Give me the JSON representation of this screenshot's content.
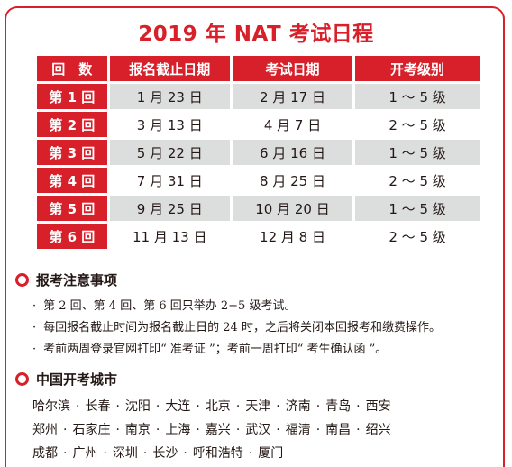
{
  "title": "2019 年 NAT 考试日程",
  "table": {
    "headers": [
      "回　数",
      "报名截止日期",
      "考试日期",
      "开考级别"
    ],
    "rows": [
      {
        "round": "第 1 回",
        "deadline": "1 月 23 日",
        "exam": "2 月 17 日",
        "levels": "1 ～ 5 级"
      },
      {
        "round": "第 2 回",
        "deadline": "3 月 13 日",
        "exam": "4 月 7 日",
        "levels": "2 ～ 5 级"
      },
      {
        "round": "第 3 回",
        "deadline": "5 月 22 日",
        "exam": "6 月 16 日",
        "levels": "1 ～ 5 级"
      },
      {
        "round": "第 4 回",
        "deadline": "7 月 31 日",
        "exam": "8 月 25 日",
        "levels": "2 ～ 5 级"
      },
      {
        "round": "第 5 回",
        "deadline": "9 月 25 日",
        "exam": "10 月 20 日",
        "levels": "1 ～ 5 级"
      },
      {
        "round": "第 6 回",
        "deadline": "11 月 13 日",
        "exam": "12 月 8 日",
        "levels": "2 ～ 5 级"
      }
    ]
  },
  "notes": {
    "heading": "报考注意事项",
    "items": [
      "第 2 回、第 4 回、第 6 回只举办 2−5 级考试。",
      "每回报名截止时间为报名截止日的 24 时，之后将关闭本回报考和缴费操作。",
      "考前两周登录官网打印“ 准考证 ”；考前一周打印“ 考生确认函 ”。"
    ]
  },
  "cities": {
    "heading": "中国开考城市",
    "lines": [
      [
        "哈尔滨",
        "长春",
        "沈阳",
        "大连",
        "北京",
        "天津",
        "济南",
        "青岛",
        "西安"
      ],
      [
        "郑州",
        "石家庄",
        "南京",
        "上海",
        "嘉兴",
        "武汉",
        "福清",
        "南昌",
        "绍兴"
      ],
      [
        "成都",
        "广州",
        "深圳",
        "长沙",
        "呼和浩特",
        "厦门"
      ]
    ]
  },
  "colors": {
    "accent": "#d8202b",
    "shade": "#dcdddd"
  }
}
